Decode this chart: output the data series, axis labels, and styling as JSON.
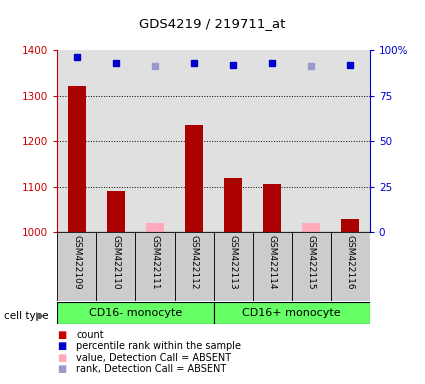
{
  "title": "GDS4219 / 219711_at",
  "samples": [
    "GSM422109",
    "GSM422110",
    "GSM422111",
    "GSM422112",
    "GSM422113",
    "GSM422114",
    "GSM422115",
    "GSM422116"
  ],
  "counts": [
    1320,
    1090,
    1020,
    1235,
    1120,
    1105,
    1020,
    1030
  ],
  "absent_flags": [
    false,
    false,
    true,
    false,
    false,
    false,
    true,
    false
  ],
  "percentiles": [
    96,
    93,
    91,
    93,
    92,
    93,
    91,
    92
  ],
  "ylim_left": [
    1000,
    1400
  ],
  "ylim_right": [
    0,
    100
  ],
  "yticks_left": [
    1000,
    1100,
    1200,
    1300,
    1400
  ],
  "yticks_right": [
    0,
    25,
    50,
    75,
    100
  ],
  "ytick_labels_right": [
    "0",
    "25",
    "50",
    "75",
    "100%"
  ],
  "bar_color_present": "#aa0000",
  "bar_color_absent": "#ffaabb",
  "dot_color_present": "#0000cc",
  "dot_color_absent": "#9999cc",
  "left_axis_color": "#cc0000",
  "right_axis_color": "#0000cc",
  "grid_color": "#000000",
  "cell_types": [
    "CD16- monocyte",
    "CD16+ monocyte"
  ],
  "cell_type_ranges": [
    [
      0,
      4
    ],
    [
      4,
      8
    ]
  ],
  "cell_type_color": "#66ff66",
  "sample_bg_color": "#cccccc",
  "legend_items": [
    {
      "label": "count",
      "color": "#cc0000"
    },
    {
      "label": "percentile rank within the sample",
      "color": "#0000cc"
    },
    {
      "label": "value, Detection Call = ABSENT",
      "color": "#ffaabb"
    },
    {
      "label": "rank, Detection Call = ABSENT",
      "color": "#9999cc"
    }
  ]
}
